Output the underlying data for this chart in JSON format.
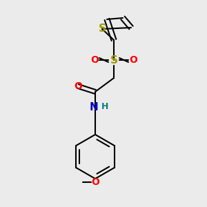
{
  "background_color": "#ebebeb",
  "figsize": [
    3.0,
    3.0
  ],
  "dpi": 100,
  "line_color": "#000000",
  "line_width": 1.5,
  "atom_colors": {
    "S": "#999900",
    "O": "#ff0000",
    "N": "#0000cc",
    "H": "#008080",
    "C": "#000000"
  }
}
